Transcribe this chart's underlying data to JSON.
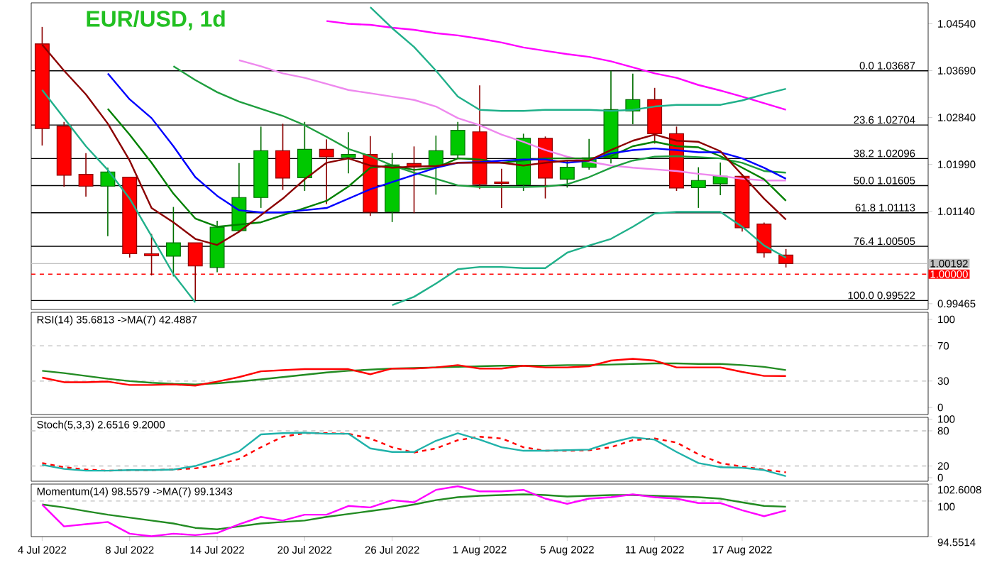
{
  "chart_data": [
    {
      "type": "candlestick",
      "title": "EUR/USD, 1d",
      "tick_labels": "y",
      "categories": [
        null,
        null,
        null,
        null,
        null,
        null,
        null,
        null,
        null,
        null,
        null,
        null,
        null,
        null,
        null,
        null,
        null,
        null,
        null,
        null,
        null,
        null,
        null,
        null,
        null,
        null,
        null,
        null,
        null,
        null,
        null,
        null,
        null,
        null,
        null,
        null,
        null,
        null,
        null,
        null,
        null
      ],
      "ohlc": [
        [
          1.04176,
          1.04484,
          1.02333,
          1.02641
        ],
        [
          1.02684,
          1.02761,
          1.01587,
          1.01793
        ],
        [
          1.0181,
          1.02196,
          1.01407,
          1.01596
        ],
        [
          1.01596,
          1.0193,
          1.00688,
          1.01853
        ],
        [
          1.01759,
          1.01759,
          1.00302,
          1.0037
        ],
        [
          1.0037,
          1.0073,
          0.99976,
          1.00336
        ],
        [
          1.00328,
          1.01219,
          0.99959,
          1.00568
        ],
        [
          1.00568,
          1.00568,
          0.99522,
          1.00148
        ],
        [
          1.00122,
          1.0097,
          1.00036,
          1.0085
        ],
        [
          1.0079,
          1.02016,
          1.00773,
          1.0139
        ],
        [
          1.0139,
          1.02676,
          1.01202,
          1.02239
        ],
        [
          1.02239,
          1.02727,
          1.01527,
          1.01742
        ],
        [
          1.0175,
          1.02761,
          1.0151,
          1.02264
        ],
        [
          1.02264,
          1.02444,
          1.0127,
          1.02127
        ],
        [
          1.02119,
          1.02573,
          1.01827,
          1.0217
        ],
        [
          1.0217,
          1.02504,
          1.01056,
          1.01125
        ],
        [
          1.01133,
          1.02196,
          1.00945,
          1.01982
        ],
        [
          1.02007,
          1.02316,
          1.01107,
          1.01947
        ],
        [
          1.01956,
          1.02513,
          1.01442,
          1.02239
        ],
        [
          1.02162,
          1.02761,
          1.02093,
          1.02607
        ],
        [
          1.02581,
          1.03424,
          1.01545,
          1.0163
        ],
        [
          1.01673,
          1.01913,
          1.01202,
          1.01647
        ],
        [
          1.01622,
          1.02547,
          1.0151,
          1.02462
        ],
        [
          1.02462,
          1.02496,
          1.01373,
          1.01742
        ],
        [
          1.01724,
          1.02059,
          1.0157,
          1.01939
        ],
        [
          1.01939,
          1.02453,
          1.01896,
          1.0211
        ],
        [
          1.0211,
          1.03687,
          1.02007,
          1.02984
        ],
        [
          1.02959,
          1.03636,
          1.02719,
          1.03164
        ],
        [
          1.03164,
          1.03378,
          1.02367,
          1.02547
        ],
        [
          1.02547,
          1.02676,
          1.0151,
          1.01562
        ],
        [
          1.0157,
          1.01939,
          1.01202,
          1.01699
        ],
        [
          1.01639,
          1.02024,
          1.01433,
          1.01776
        ],
        [
          1.01776,
          1.01819,
          1.00773,
          1.00842
        ],
        [
          1.0091,
          1.00936,
          1.00302,
          1.00388
        ],
        [
          1.00345,
          1.00456,
          1.00122,
          1.00192
        ],
        null,
        null,
        null,
        null,
        null,
        null
      ],
      "colors": [
        "#ff0000",
        "#ff0000",
        "#ff0000",
        "#00c800",
        "#ff0000",
        "#ff0000",
        "#00c800",
        "#ff0000",
        "#00c800",
        "#00c800",
        "#00c800",
        "#ff0000",
        "#00c800",
        "#ff0000",
        "#00c800",
        "#ff0000",
        "#00c800",
        "#ff0000",
        "#00c800",
        "#00c800",
        "#ff0000",
        "#ff0000",
        "#00c800",
        "#ff0000",
        "#00c800",
        "#00c800",
        "#00c800",
        "#00c800",
        "#ff0000",
        "#ff0000",
        "#00c800",
        "#00c800",
        "#ff0000",
        "#ff0000",
        "#ff0000",
        null,
        null,
        null,
        null,
        null,
        null
      ],
      "series": [
        {
          "type": "line",
          "color": "#ff00ff",
          "values": [
            null,
            null,
            null,
            null,
            null,
            null,
            null,
            null,
            null,
            null,
            null,
            null,
            null,
            1.0459,
            1.0454,
            1.0452,
            1.0447,
            1.0443,
            1.0437,
            1.0433,
            1.0427,
            1.042,
            1.0411,
            1.0405,
            1.0399,
            1.0394,
            1.0386,
            1.0375,
            1.0364,
            1.0356,
            1.0343,
            1.0333,
            1.0322,
            1.031,
            1.0298,
            null,
            null,
            null,
            null,
            null,
            null
          ]
        },
        {
          "type": "line",
          "color": "#ee88ee",
          "values": [
            null,
            null,
            null,
            null,
            null,
            null,
            null,
            null,
            null,
            1.0388,
            1.0377,
            1.0364,
            1.0356,
            1.0345,
            1.0334,
            1.0328,
            1.0322,
            1.0316,
            1.0304,
            1.0283,
            1.027,
            1.0253,
            1.024,
            1.0225,
            1.0213,
            1.0204,
            1.0197,
            1.0193,
            1.019,
            1.0187,
            1.0182,
            1.0178,
            1.0173,
            1.017,
            1.017,
            null,
            null,
            null,
            null,
            null,
            null
          ]
        },
        {
          "type": "line",
          "color": "#20b08a",
          "values": [
            null,
            null,
            null,
            null,
            null,
            null,
            null,
            null,
            null,
            null,
            null,
            null,
            null,
            null,
            null,
            1.0484,
            1.0446,
            1.0412,
            1.0369,
            1.0322,
            1.0298,
            1.0296,
            1.0296,
            1.0298,
            1.0298,
            1.0298,
            1.0296,
            1.0298,
            1.0304,
            1.0307,
            1.0307,
            1.0307,
            1.0315,
            1.0326,
            1.0336,
            null,
            null,
            null,
            null,
            null,
            null
          ]
        },
        {
          "type": "line",
          "color": "#20b08a",
          "values": [
            1.0334,
            1.0283,
            1.0232,
            1.0189,
            1.0137,
            1.0069,
            1.0,
            0.9949,
            null,
            null,
            null,
            null,
            null,
            null,
            null,
            null,
            0.9944,
            0.9959,
            0.9983,
            1.0009,
            1.0013,
            1.0013,
            1.0011,
            1.0011,
            1.0039,
            1.0052,
            1.0064,
            1.0086,
            1.011,
            1.0113,
            1.0113,
            1.0113,
            1.0086,
            1.0052,
            1.003,
            null,
            null,
            null,
            null,
            null,
            null
          ]
        },
        {
          "type": "line",
          "color": "#1e9e3e",
          "values": [
            null,
            null,
            null,
            null,
            null,
            null,
            1.0377,
            1.0352,
            1.033,
            1.0313,
            1.03,
            1.0287,
            1.027,
            1.0249,
            1.0227,
            1.0214,
            1.0197,
            1.0184,
            1.0173,
            1.0161,
            1.0158,
            1.0158,
            1.0158,
            1.0159,
            1.0163,
            1.0176,
            1.0193,
            1.0206,
            1.0213,
            1.0214,
            1.0212,
            1.021,
            1.0202,
            1.0187,
            1.0184,
            null,
            null,
            null,
            null,
            null,
            null
          ]
        },
        {
          "type": "line",
          "color": "#008000",
          "values": [
            null,
            null,
            null,
            1.03,
            1.0253,
            1.0202,
            1.0146,
            1.0101,
            1.0086,
            1.009,
            1.0094,
            1.0107,
            1.012,
            1.0133,
            1.0159,
            1.0193,
            1.0197,
            1.0189,
            1.0193,
            1.021,
            1.0208,
            1.0202,
            1.0206,
            1.021,
            1.021,
            1.021,
            1.0214,
            1.0232,
            1.024,
            1.0232,
            1.023,
            1.0214,
            1.0193,
            1.0172,
            1.0133,
            null,
            null,
            null,
            null,
            null,
            null
          ]
        },
        {
          "type": "line",
          "color": "#0000ff",
          "values": [
            null,
            null,
            null,
            1.0364,
            1.0317,
            1.0283,
            1.0232,
            1.0176,
            1.0142,
            1.0116,
            1.0112,
            1.0112,
            1.0116,
            1.012,
            1.0137,
            1.0154,
            1.0167,
            1.018,
            1.0193,
            1.0202,
            1.0203,
            1.0206,
            1.0208,
            1.0208,
            1.0202,
            1.0206,
            1.0219,
            1.0225,
            1.0228,
            1.0225,
            1.0221,
            1.0221,
            1.021,
            1.0193,
            1.0173,
            null,
            null,
            null,
            null,
            null,
            null
          ]
        },
        {
          "type": "line",
          "color": "#8b0000",
          "values": [
            1.0416,
            1.0369,
            1.0326,
            1.0273,
            1.0206,
            1.012,
            1.0094,
            1.0064,
            1.0053,
            1.0077,
            1.0107,
            1.0137,
            1.0172,
            1.0202,
            1.021,
            1.0197,
            1.0193,
            1.0195,
            1.0196,
            1.0202,
            1.0202,
            1.0202,
            1.0197,
            1.0202,
            1.0206,
            1.0206,
            1.0225,
            1.0242,
            1.0253,
            1.0242,
            1.024,
            1.0223,
            1.018,
            1.0137,
            1.0099,
            null,
            null,
            null,
            null,
            null,
            null
          ]
        }
      ],
      "ylim": [
        0.9936,
        1.0492
      ],
      "yticks": [
        {
          "value": 0.99465,
          "label": "0.99465"
        },
        {
          "value": 1.0114,
          "label": "1.01140"
        },
        {
          "value": 1.0199,
          "label": "1.01990"
        },
        {
          "value": 1.0284,
          "label": "1.02840"
        },
        {
          "value": 1.0369,
          "label": "1.03690"
        },
        {
          "value": 1.0454,
          "label": "1.04540"
        }
      ],
      "ref_lines": [
        {
          "axis": "y",
          "value": 1.03687,
          "label": "0.0 1.03687"
        },
        {
          "axis": "y",
          "value": 1.02704,
          "label": "23.6 1.02704"
        },
        {
          "axis": "y",
          "value": 1.02096,
          "label": "38.2 1.02096"
        },
        {
          "axis": "y",
          "value": 1.01605,
          "label": "50.0 1.01605"
        },
        {
          "axis": "y",
          "value": 1.01113,
          "label": "61.8 1.01113"
        },
        {
          "axis": "y",
          "value": 1.00505,
          "label": "76.4 1.00505"
        },
        {
          "axis": "y",
          "value": 0.99522,
          "label": "100.0 0.99522"
        },
        {
          "axis": "y",
          "value": 1.00192,
          "label": "1.00192",
          "color": "#c0c0c0"
        },
        {
          "axis": "y",
          "value": 1.0,
          "label": "1.00000",
          "color": "#ff0000",
          "line_style": "dashed"
        }
      ]
    },
    {
      "type": "line",
      "title": "RSI(14) 35.6813  ->MA(7) 42.4887",
      "tick_labels": "y",
      "categories": [
        null,
        null,
        null,
        null,
        null,
        null,
        null,
        null,
        null,
        null,
        null,
        null,
        null,
        null,
        null,
        null,
        null,
        null,
        null,
        null,
        null,
        null,
        null,
        null,
        null,
        null,
        null,
        null,
        null,
        null,
        null,
        null,
        null,
        null,
        null,
        null,
        null,
        null,
        null,
        null,
        null
      ],
      "series": [
        {
          "color": "#228b22",
          "values": [
            41.6,
            39.0,
            35.8,
            32.6,
            30.0,
            28.1,
            26.8,
            26.1,
            27.4,
            29.4,
            31.9,
            34.5,
            37.1,
            39.7,
            41.6,
            42.9,
            44.2,
            44.8,
            45.5,
            46.1,
            46.8,
            47.4,
            47.4,
            47.4,
            48.1,
            48.1,
            48.7,
            49.4,
            50.0,
            50.0,
            49.4,
            49.4,
            48.1,
            46.1,
            42.4887,
            null,
            null,
            null,
            null,
            null,
            null
          ]
        },
        {
          "color": "#ff0000",
          "values": [
            33.9,
            28.7,
            28.7,
            29.4,
            25.5,
            25.5,
            26.1,
            24.8,
            29.4,
            34.5,
            41.0,
            42.3,
            43.5,
            43.5,
            43.5,
            37.7,
            44.2,
            44.2,
            45.5,
            48.1,
            44.2,
            44.2,
            47.4,
            45.5,
            45.5,
            46.8,
            53.2,
            55.2,
            53.2,
            45.5,
            45.5,
            45.5,
            40.3,
            35.8,
            35.6813,
            null,
            null,
            null,
            null,
            null,
            null
          ]
        }
      ],
      "ylim": [
        -8,
        108
      ],
      "yticks": [
        0,
        30,
        70,
        100
      ],
      "ref_lines": [
        {
          "axis": "y",
          "value": 70,
          "color": "#c0c0c0",
          "line_style": "dashed"
        },
        {
          "axis": "y",
          "value": 30,
          "color": "#c0c0c0",
          "line_style": "dashed"
        }
      ]
    },
    {
      "type": "line",
      "title": "Stoch(5,3,3) 2.6516 9.2000",
      "tick_labels": "y",
      "categories": [
        null,
        null,
        null,
        null,
        null,
        null,
        null,
        null,
        null,
        null,
        null,
        null,
        null,
        null,
        null,
        null,
        null,
        null,
        null,
        null,
        null,
        null,
        null,
        null,
        null,
        null,
        null,
        null,
        null,
        null,
        null,
        null,
        null,
        null,
        null,
        null,
        null,
        null,
        null,
        null,
        null
      ],
      "series": [
        {
          "color": "#ff0000",
          "line_style": "dashed",
          "values": [
            25,
            18,
            14,
            12,
            13,
            13,
            14,
            16,
            22,
            32,
            52,
            70,
            76,
            76,
            75,
            67,
            52,
            43,
            50,
            64,
            70,
            67,
            52,
            46,
            46,
            47,
            52,
            64,
            67,
            60,
            40,
            25,
            19,
            14,
            9.2,
            null,
            null,
            null,
            null,
            null,
            null
          ]
        },
        {
          "color": "#20b2aa",
          "values": [
            22,
            15,
            12,
            12,
            13,
            13,
            14,
            20,
            32,
            45,
            74,
            76,
            77,
            75,
            75,
            50,
            44,
            44,
            63,
            76,
            65,
            52,
            46,
            46,
            47,
            48,
            60,
            69,
            65,
            44,
            25,
            18,
            17,
            13,
            2.6516,
            null,
            null,
            null,
            null,
            null,
            null
          ]
        }
      ],
      "ylim": [
        -6,
        103
      ],
      "yticks": [
        0,
        20,
        80,
        100
      ],
      "ref_lines": [
        {
          "axis": "y",
          "value": 80,
          "color": "#c0c0c0",
          "line_style": "dashed"
        },
        {
          "axis": "y",
          "value": 20,
          "color": "#c0c0c0",
          "line_style": "dashed"
        }
      ]
    },
    {
      "type": "line",
      "title": "Momentum(14) 98.5579  ->MA(7) 99.1343",
      "categories": [
        "4 Jul 2022",
        null,
        null,
        null,
        "8 Jul 2022",
        null,
        null,
        null,
        "14 Jul 2022",
        null,
        null,
        null,
        "20 Jul 2022",
        null,
        null,
        null,
        "26 Jul 2022",
        null,
        null,
        null,
        "1 Aug 2022",
        null,
        null,
        null,
        "5 Aug 2022",
        null,
        null,
        null,
        "11 Aug 2022",
        null,
        null,
        null,
        "17 Aug 2022",
        null,
        null,
        null,
        null,
        null,
        null,
        null,
        null
      ],
      "series": [
        {
          "color": "#228b22",
          "values": [
            99.47,
            99.02,
            98.46,
            97.91,
            97.46,
            97.01,
            96.56,
            95.89,
            95.67,
            96.12,
            96.56,
            96.79,
            97.01,
            97.57,
            98.02,
            98.46,
            98.91,
            99.47,
            100.14,
            100.59,
            100.81,
            100.92,
            101.03,
            100.92,
            100.7,
            100.81,
            100.92,
            100.92,
            100.81,
            100.7,
            100.59,
            100.37,
            99.8,
            99.25,
            99.1343,
            null,
            null,
            null,
            null,
            null,
            null
          ]
        },
        {
          "color": "#ff00ff",
          "values": [
            99.47,
            96.12,
            96.45,
            96.79,
            95.0,
            94.6,
            95.0,
            94.78,
            95.11,
            96.45,
            97.57,
            97.01,
            97.91,
            97.91,
            99.25,
            99.02,
            100.14,
            99.8,
            101.71,
            102.27,
            101.48,
            101.48,
            101.71,
            100.37,
            99.58,
            100.37,
            100.59,
            101.03,
            100.59,
            100.37,
            99.69,
            99.69,
            98.58,
            97.68,
            98.5579,
            null,
            null,
            null,
            null,
            null,
            null
          ]
        }
      ],
      "ylim": [
        94.5514,
        102.6008
      ],
      "yticks": [
        94.5514,
        100,
        102.6008
      ],
      "ref_lines": [
        {
          "axis": "y",
          "value": 100,
          "color": "#c0c0c0",
          "line_style": "dashed"
        }
      ]
    }
  ]
}
